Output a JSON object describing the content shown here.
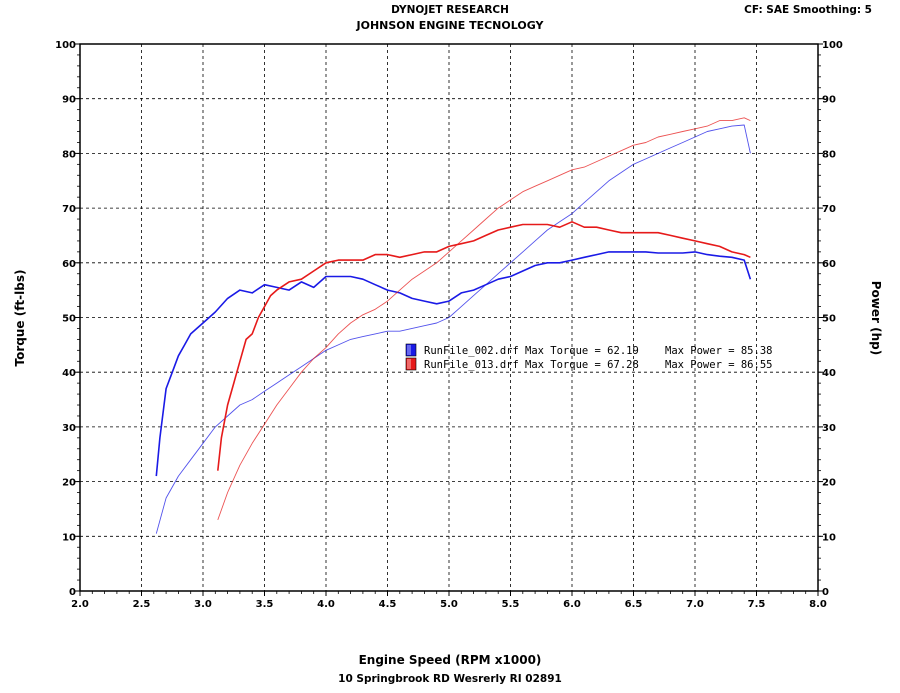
{
  "header": {
    "title": "DYNOJET RESEARCH",
    "subtitle": "JOHNSON ENGINE TECNOLOGY",
    "settings": "CF: SAE  Smoothing: 5"
  },
  "footer": {
    "address": "10 Springbrook RD Wesrerly RI 02891"
  },
  "chart_data": {
    "type": "line",
    "xlabel": "Engine Speed (RPM x1000)",
    "ylabel": "Torque (ft-lbs)",
    "y2label": "Power (hp)",
    "xlim": [
      2.0,
      8.0
    ],
    "ylim": [
      0,
      100
    ],
    "y2lim": [
      0,
      100
    ],
    "xticks": [
      "2.0",
      "2.5",
      "3.0",
      "3.5",
      "4.0",
      "4.5",
      "5.0",
      "5.5",
      "6.0",
      "6.5",
      "7.0",
      "7.5",
      "8.0"
    ],
    "yticks": [
      "0",
      "10",
      "20",
      "30",
      "40",
      "50",
      "60",
      "70",
      "80",
      "90",
      "100"
    ],
    "grid": true,
    "colors": {
      "run002": "#1a1ae6",
      "run013": "#e61a1a"
    },
    "legend": [
      {
        "name": "RunFile_002.drf",
        "max_torque_label": "Max Torque = 62.19",
        "max_power_label": "Max Power = 85.38",
        "color": "#1a1ae6"
      },
      {
        "name": "RunFile_013.drf",
        "max_torque_label": "Max Torque = 67.28",
        "max_power_label": "Max Power = 86.55",
        "color": "#e61a1a"
      }
    ],
    "series": [
      {
        "run": "RunFile_002.drf",
        "measure": "torque",
        "color": "#1a1ae6",
        "x": [
          2.62,
          2.65,
          2.7,
          2.75,
          2.8,
          2.85,
          2.9,
          2.95,
          3.0,
          3.1,
          3.2,
          3.3,
          3.4,
          3.5,
          3.6,
          3.7,
          3.8,
          3.9,
          4.0,
          4.1,
          4.2,
          4.3,
          4.4,
          4.5,
          4.6,
          4.7,
          4.8,
          4.9,
          5.0,
          5.1,
          5.2,
          5.3,
          5.4,
          5.5,
          5.6,
          5.7,
          5.8,
          5.9,
          6.0,
          6.1,
          6.2,
          6.3,
          6.4,
          6.5,
          6.6,
          6.7,
          6.8,
          6.9,
          7.0,
          7.1,
          7.2,
          7.3,
          7.4,
          7.45
        ],
        "y": [
          21,
          28,
          37,
          40,
          43,
          45,
          47,
          48,
          49,
          51,
          53.5,
          55,
          54.5,
          56,
          55.5,
          55,
          56.5,
          55.5,
          57.5,
          57.5,
          57.5,
          57,
          56,
          55,
          54.5,
          53.5,
          53,
          52.5,
          53,
          54.5,
          55,
          56,
          57,
          57.5,
          58.5,
          59.5,
          60,
          60,
          60.5,
          61,
          61.5,
          62,
          62,
          62,
          62,
          61.8,
          61.8,
          61.8,
          62,
          61.5,
          61.2,
          61,
          60.5,
          57
        ]
      },
      {
        "run": "RunFile_002.drf",
        "measure": "power",
        "color": "#1a1ae6",
        "x": [
          2.62,
          2.7,
          2.8,
          2.9,
          3.0,
          3.1,
          3.2,
          3.3,
          3.4,
          3.5,
          3.6,
          3.7,
          3.8,
          3.9,
          4.0,
          4.1,
          4.2,
          4.3,
          4.4,
          4.5,
          4.6,
          4.7,
          4.8,
          4.9,
          5.0,
          5.1,
          5.2,
          5.3,
          5.4,
          5.5,
          5.6,
          5.7,
          5.8,
          5.9,
          6.0,
          6.1,
          6.2,
          6.3,
          6.4,
          6.5,
          6.6,
          6.7,
          6.8,
          6.9,
          7.0,
          7.1,
          7.2,
          7.3,
          7.4,
          7.45
        ],
        "y": [
          10.5,
          17,
          21,
          24,
          27,
          30,
          32,
          34,
          35,
          36.5,
          38,
          39.5,
          41,
          42.5,
          44,
          45,
          46,
          46.5,
          47,
          47.5,
          47.5,
          48,
          48.5,
          49,
          50,
          52,
          54,
          56,
          58,
          60,
          62,
          64,
          66,
          67.5,
          69,
          71,
          73,
          75,
          76.5,
          78,
          79,
          80,
          81,
          82,
          83,
          84,
          84.5,
          85,
          85.2,
          80
        ]
      },
      {
        "run": "RunFile_013.drf",
        "measure": "torque",
        "color": "#e61a1a",
        "x": [
          3.12,
          3.15,
          3.2,
          3.25,
          3.3,
          3.35,
          3.4,
          3.45,
          3.5,
          3.55,
          3.6,
          3.7,
          3.8,
          3.9,
          4.0,
          4.1,
          4.2,
          4.3,
          4.4,
          4.5,
          4.6,
          4.7,
          4.8,
          4.9,
          5.0,
          5.1,
          5.2,
          5.3,
          5.4,
          5.5,
          5.6,
          5.7,
          5.8,
          5.9,
          6.0,
          6.1,
          6.2,
          6.3,
          6.4,
          6.5,
          6.6,
          6.7,
          6.8,
          6.9,
          7.0,
          7.1,
          7.2,
          7.3,
          7.4,
          7.45
        ],
        "y": [
          22,
          28,
          34,
          38,
          42,
          46,
          47,
          50,
          52,
          54,
          55,
          56.5,
          57,
          58.5,
          60,
          60.5,
          60.5,
          60.5,
          61.5,
          61.5,
          61,
          61.5,
          62,
          62,
          63,
          63.5,
          64,
          65,
          66,
          66.5,
          67,
          67,
          67,
          66.5,
          67.5,
          66.5,
          66.5,
          66,
          65.5,
          65.5,
          65.5,
          65.5,
          65,
          64.5,
          64,
          63.5,
          63,
          62,
          61.5,
          61
        ]
      },
      {
        "run": "RunFile_013.drf",
        "measure": "power",
        "color": "#e61a1a",
        "x": [
          3.12,
          3.2,
          3.3,
          3.4,
          3.5,
          3.6,
          3.7,
          3.8,
          3.9,
          4.0,
          4.1,
          4.2,
          4.3,
          4.4,
          4.5,
          4.6,
          4.7,
          4.8,
          4.9,
          5.0,
          5.1,
          5.2,
          5.3,
          5.4,
          5.5,
          5.6,
          5.7,
          5.8,
          5.9,
          6.0,
          6.1,
          6.2,
          6.3,
          6.4,
          6.5,
          6.6,
          6.7,
          6.8,
          6.9,
          7.0,
          7.1,
          7.2,
          7.3,
          7.4,
          7.45
        ],
        "y": [
          13,
          18,
          23,
          27,
          30.5,
          34,
          37,
          40,
          42.5,
          44.5,
          47,
          49,
          50.5,
          51.5,
          53,
          55,
          57,
          58.5,
          60,
          62,
          64,
          66,
          68,
          70,
          71.5,
          73,
          74,
          75,
          76,
          77,
          77.5,
          78.5,
          79.5,
          80.5,
          81.5,
          82,
          83,
          83.5,
          84,
          84.5,
          85,
          86,
          86,
          86.5,
          86
        ]
      }
    ]
  }
}
